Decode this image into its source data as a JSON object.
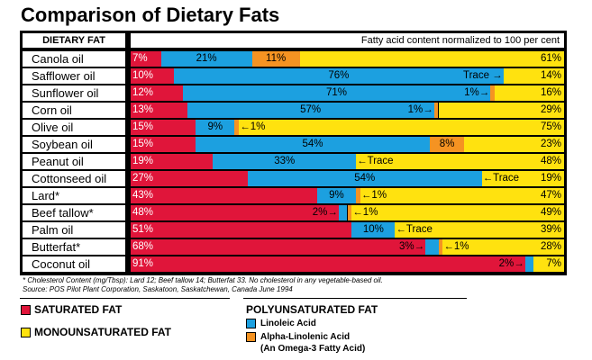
{
  "title": "Comparison of Dietary Fats",
  "header_left": "DIETARY FAT",
  "header_right": "Fatty acid content normalized to 100 per cent",
  "colors": {
    "saturated": "#E0153A",
    "linoleic": "#1CA0E0",
    "alpha": "#F59322",
    "mono": "#FFE20F"
  },
  "chart_data": {
    "type": "bar",
    "stacked": true,
    "orientation": "horizontal",
    "categories": [
      "Canola oil",
      "Safflower oil",
      "Sunflower oil",
      "Corn oil",
      "Olive oil",
      "Soybean oil",
      "Peanut oil",
      "Cottonseed oil",
      "Lard*",
      "Beef tallow*",
      "Palm oil",
      "Butterfat*",
      "Coconut oil"
    ],
    "series": [
      {
        "key": "saturated",
        "name": "SATURATED FAT",
        "values": [
          7,
          10,
          12,
          13,
          15,
          15,
          19,
          27,
          43,
          48,
          51,
          68,
          91
        ]
      },
      {
        "key": "linoleic",
        "name": "Linoleic Acid",
        "values": [
          21,
          76,
          71,
          57,
          9,
          54,
          33,
          54,
          9,
          2,
          10,
          3,
          2
        ]
      },
      {
        "key": "alpha",
        "name": "Alpha-Linolenic Acid",
        "values": [
          11,
          0,
          1,
          1,
          1,
          8,
          0,
          0,
          1,
          1,
          0,
          1,
          0
        ]
      },
      {
        "key": "mono",
        "name": "MONOUNSATURATED FAT",
        "values": [
          61,
          14,
          16,
          29,
          75,
          23,
          48,
          19,
          47,
          49,
          39,
          28,
          7
        ]
      }
    ],
    "labels": [
      [
        "7%",
        "21%",
        "11%",
        "61%"
      ],
      [
        "10%",
        "76%",
        "",
        "14%"
      ],
      [
        "12%",
        "71%",
        "",
        "16%"
      ],
      [
        "13%",
        "57%",
        "",
        "29%"
      ],
      [
        "15%",
        "9%",
        "",
        "75%"
      ],
      [
        "15%",
        "54%",
        "8%",
        "23%"
      ],
      [
        "19%",
        "33%",
        "",
        "48%"
      ],
      [
        "27%",
        "54%",
        "",
        "19%"
      ],
      [
        "43%",
        "9%",
        "",
        "47%"
      ],
      [
        "48%",
        "",
        "",
        "49%"
      ],
      [
        "51%",
        "10%",
        "",
        "39%"
      ],
      [
        "68%",
        "",
        "",
        "28%"
      ],
      [
        "91%",
        "",
        "",
        "7%"
      ]
    ],
    "annotations": [
      {
        "row": 1,
        "text": "Trace →",
        "anchor": "alpha",
        "side": "left"
      },
      {
        "row": 2,
        "text": "1%→",
        "anchor": "alpha",
        "side": "left"
      },
      {
        "row": 3,
        "text": "1%→",
        "anchor": "alpha",
        "side": "left"
      },
      {
        "row": 4,
        "text": "←1%",
        "anchor": "alpha",
        "side": "right"
      },
      {
        "row": 6,
        "text": "←Trace",
        "anchor": "alpha",
        "side": "right"
      },
      {
        "row": 7,
        "text": "←Trace",
        "anchor": "alpha",
        "side": "right"
      },
      {
        "row": 8,
        "text": "←1%",
        "anchor": "alpha",
        "side": "right"
      },
      {
        "row": 9,
        "text": "2%→",
        "anchor": "linoleic",
        "side": "left"
      },
      {
        "row": 9,
        "text": "←1%",
        "anchor": "alpha",
        "side": "right"
      },
      {
        "row": 10,
        "text": "←Trace",
        "anchor": "alpha",
        "side": "right"
      },
      {
        "row": 11,
        "text": "3%→",
        "anchor": "linoleic",
        "side": "left"
      },
      {
        "row": 11,
        "text": "←1%",
        "anchor": "alpha",
        "side": "right"
      },
      {
        "row": 12,
        "text": "2%→",
        "anchor": "linoleic",
        "side": "left"
      }
    ]
  },
  "footnote1": "* Cholesterol Content (mg/Tbsp): Lard 12; Beef tallow 14; Butterfat 33. No cholesterol in any vegetable-based oil.",
  "footnote2": "Source: POS Pilot Plant Corporation, Saskatoon, Saskatchewan, Canada June 1994",
  "legend": {
    "saturated": "SATURATED FAT",
    "mono": "MONOUNSATURATED FAT",
    "poly_title": "POLYUNSATURATED FAT",
    "linoleic": "Linoleic Acid",
    "alpha": "Alpha-Linolenic Acid",
    "alpha_sub": "(An Omega-3 Fatty Acid)"
  }
}
